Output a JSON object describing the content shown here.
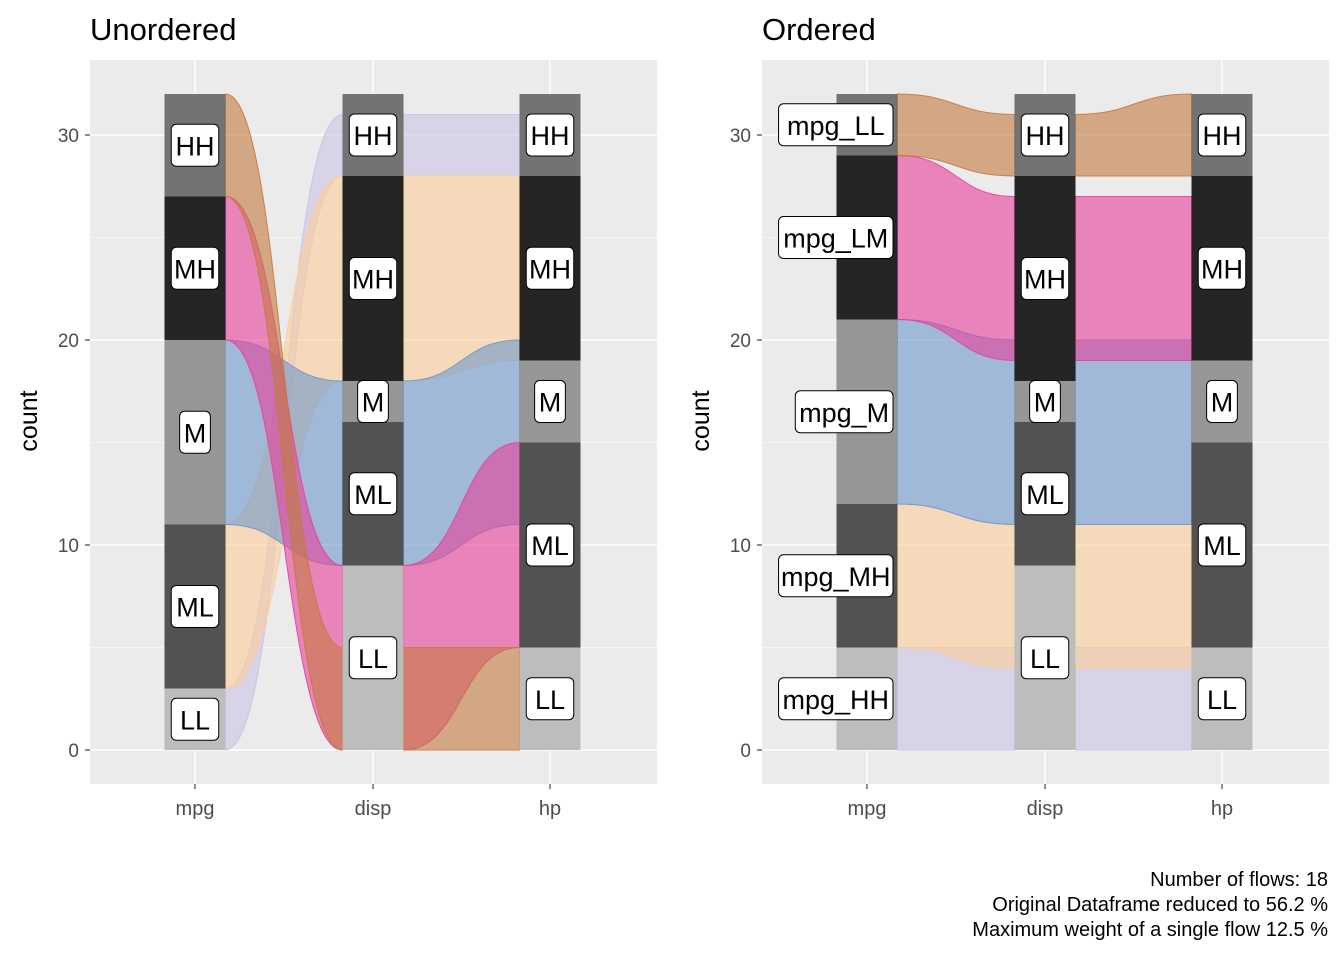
{
  "chart_data": [
    {
      "type": "alluvial",
      "title": "Unordered",
      "ylabel": "count",
      "xlabel": "",
      "ylim": [
        0,
        32
      ],
      "yticks": [
        0,
        10,
        20,
        30
      ],
      "axes": [
        "mpg",
        "disp",
        "hp"
      ],
      "strata": {
        "mpg": [
          {
            "label": "LL",
            "from": 0,
            "to": 3
          },
          {
            "label": "ML",
            "from": 3,
            "to": 11
          },
          {
            "label": "M",
            "from": 11,
            "to": 20
          },
          {
            "label": "MH",
            "from": 20,
            "to": 27
          },
          {
            "label": "HH",
            "from": 27,
            "to": 32
          }
        ],
        "disp": [
          {
            "label": "LL",
            "from": 0,
            "to": 9
          },
          {
            "label": "ML",
            "from": 9,
            "to": 16
          },
          {
            "label": "M",
            "from": 16,
            "to": 18
          },
          {
            "label": "MH",
            "from": 18,
            "to": 28
          },
          {
            "label": "HH",
            "from": 28,
            "to": 32
          }
        ],
        "hp": [
          {
            "label": "LL",
            "from": 0,
            "to": 5
          },
          {
            "label": "ML",
            "from": 5,
            "to": 15
          },
          {
            "label": "M",
            "from": 15,
            "to": 19
          },
          {
            "label": "MH",
            "from": 19,
            "to": 28
          },
          {
            "label": "HH",
            "from": 28,
            "to": 32
          }
        ]
      },
      "flows": [
        {
          "group": "LL",
          "segments": [
            [
              0,
              3,
              28,
              31
            ],
            [
              28,
              31,
              28,
              31
            ]
          ]
        },
        {
          "group": "ML",
          "segments": [
            [
              3,
              11,
              18,
              28
            ],
            [
              18,
              28,
              19,
              28
            ]
          ]
        },
        {
          "group": "M",
          "segments": [
            [
              11,
              20,
              9,
              18
            ],
            [
              9,
              18,
              11,
              20
            ]
          ]
        },
        {
          "group": "MH",
          "segments": [
            [
              20,
              27,
              0,
              9
            ],
            [
              0,
              9,
              5,
              15
            ]
          ]
        },
        {
          "group": "HH",
          "segments": [
            [
              27,
              32,
              0,
              5
            ],
            [
              0,
              5,
              0,
              5
            ]
          ]
        }
      ],
      "group_colors": {
        "LL": "#cbc3e3",
        "ML": "#fdcd9a",
        "M": "#6e97cb",
        "MH": "#e8409a",
        "HH": "#c47a3f"
      }
    },
    {
      "type": "alluvial",
      "title": "Ordered",
      "ylabel": "count",
      "xlabel": "",
      "ylim": [
        0,
        32
      ],
      "yticks": [
        0,
        10,
        20,
        30
      ],
      "axes": [
        "mpg",
        "disp",
        "hp"
      ],
      "strata": {
        "mpg": [
          {
            "label": "mpg_HH",
            "from": 0,
            "to": 5
          },
          {
            "label": "mpg_MH",
            "from": 5,
            "to": 12
          },
          {
            "label": "mpg_M",
            "from": 12,
            "to": 21
          },
          {
            "label": "mpg_LM",
            "from": 21,
            "to": 29
          },
          {
            "label": "mpg_LL",
            "from": 29,
            "to": 32
          }
        ],
        "disp": [
          {
            "label": "LL",
            "from": 0,
            "to": 9
          },
          {
            "label": "ML",
            "from": 9,
            "to": 16
          },
          {
            "label": "M",
            "from": 16,
            "to": 18
          },
          {
            "label": "MH",
            "from": 18,
            "to": 28
          },
          {
            "label": "HH",
            "from": 28,
            "to": 32
          }
        ],
        "hp": [
          {
            "label": "LL",
            "from": 0,
            "to": 5
          },
          {
            "label": "ML",
            "from": 5,
            "to": 15
          },
          {
            "label": "M",
            "from": 15,
            "to": 19
          },
          {
            "label": "MH",
            "from": 19,
            "to": 28
          },
          {
            "label": "HH",
            "from": 28,
            "to": 32
          }
        ]
      },
      "flows": [
        {
          "group": "HH",
          "segments": [
            [
              0,
              5,
              0,
              5
            ],
            [
              0,
              5,
              0,
              5
            ]
          ]
        },
        {
          "group": "MH",
          "segments": [
            [
              5,
              12,
              4,
              11
            ],
            [
              4,
              11,
              4,
              11
            ]
          ]
        },
        {
          "group": "M",
          "segments": [
            [
              12,
              21,
              11,
              20
            ],
            [
              11,
              20,
              11,
              20
            ]
          ]
        },
        {
          "group": "LM",
          "segments": [
            [
              21,
              29,
              19,
              27
            ],
            [
              19,
              27,
              19,
              27
            ]
          ]
        },
        {
          "group": "LL",
          "segments": [
            [
              29,
              32,
              28,
              31
            ],
            [
              28,
              31,
              28,
              32
            ]
          ]
        }
      ],
      "group_colors": {
        "HH": "#cbc3e3",
        "MH": "#fdcd9a",
        "M": "#6e97cb",
        "LM": "#e8409a",
        "LL": "#c47a3f"
      }
    }
  ],
  "caption": {
    "line1": "Number of flows: 18",
    "line2": "Original Dataframe reduced to 56.2 %",
    "line3": "Maximum weight of a single flow 12.5 %"
  },
  "colors": {
    "panel_bg": "#ebebeb",
    "grid": "#ffffff",
    "stratum_fills": [
      "#bdbdbd",
      "#525252",
      "#969696",
      "#252525",
      "#737373"
    ]
  }
}
